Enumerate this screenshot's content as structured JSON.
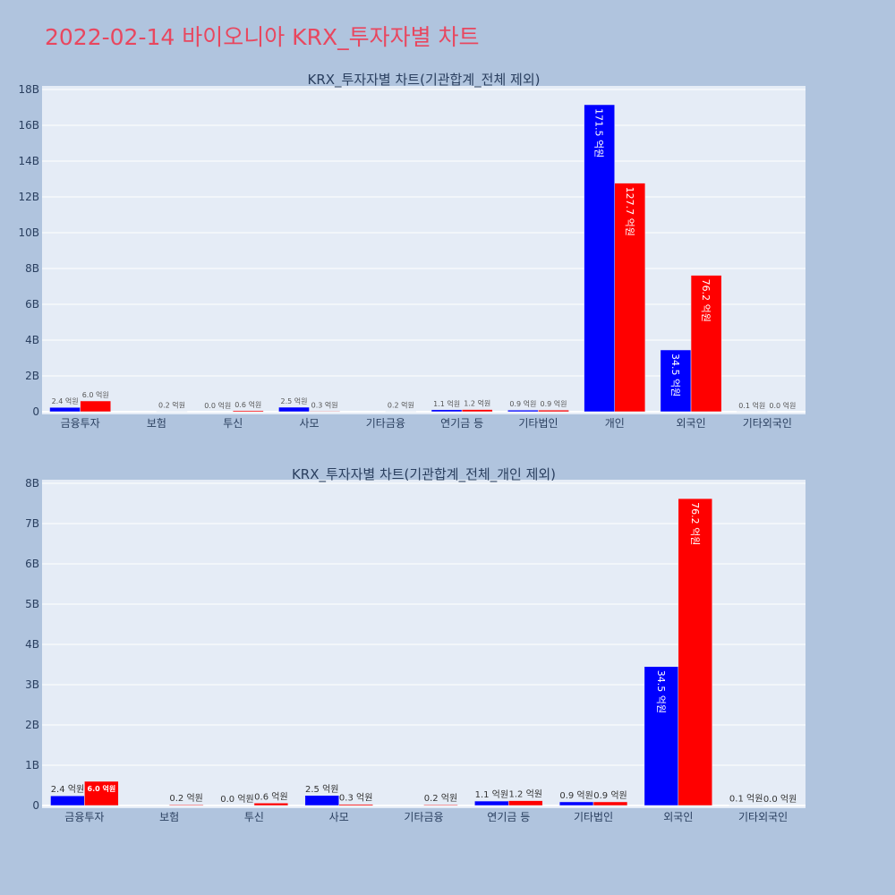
{
  "page": {
    "title": "2022-02-14 바이오니아 KRX_투자자별 차트",
    "background": "#b0c4de",
    "plot_background": "#e5ecf6",
    "colors": {
      "buy": "#0000ff",
      "sell": "#ff0000",
      "title": "#e8475f"
    }
  },
  "chart_data": [
    {
      "type": "bar",
      "title": "KRX_투자자별 차트(기관합계_전체 제외)",
      "categories": [
        "금융투자",
        "보험",
        "투신",
        "사모",
        "기타금융",
        "연기금 등",
        "기타법인",
        "개인",
        "외국인",
        "기타외국인"
      ],
      "ylim": [
        0,
        18
      ],
      "yticks": [
        0,
        2,
        4,
        6,
        8,
        10,
        12,
        14,
        16,
        18
      ],
      "ytick_labels": [
        "0",
        "2B",
        "4B",
        "6B",
        "8B",
        "10B",
        "12B",
        "14B",
        "16B",
        "18B"
      ],
      "grid": true,
      "series": [
        {
          "color": "#0000ff",
          "values": [
            0.24,
            0,
            0.0,
            0.25,
            0,
            0.11,
            0.09,
            17.15,
            3.45,
            0.01
          ],
          "labels": [
            "2.4 억원",
            "",
            "0.0 억원",
            "2.5 억원",
            "",
            "1.1 억원",
            "0.9 억원",
            "171.5 억원",
            "34.5 억원",
            "0.1 억원"
          ]
        },
        {
          "color": "#ff0000",
          "values": [
            0.6,
            0.02,
            0.06,
            0.03,
            0.02,
            0.12,
            0.09,
            12.77,
            7.62,
            0.0
          ],
          "labels": [
            "6.0 억원",
            "0.2 억원",
            "0.6 억원",
            "0.3 억원",
            "0.2 억원",
            "1.2 억원",
            "0.9 억원",
            "127.7 억원",
            "76.2 억원",
            "0.0 억원"
          ]
        }
      ]
    },
    {
      "type": "bar",
      "title": "KRX_투자자별 차트(기관합계_전체_개인 제외)",
      "categories": [
        "금융투자",
        "보험",
        "투신",
        "사모",
        "기타금융",
        "연기금 등",
        "기타법인",
        "외국인",
        "기타외국인"
      ],
      "ylim": [
        0,
        8
      ],
      "yticks": [
        0,
        1,
        2,
        3,
        4,
        5,
        6,
        7,
        8
      ],
      "ytick_labels": [
        "0",
        "1B",
        "2B",
        "3B",
        "4B",
        "5B",
        "6B",
        "7B",
        "8B"
      ],
      "grid": true,
      "series": [
        {
          "color": "#0000ff",
          "values": [
            0.24,
            0,
            0.0,
            0.25,
            0,
            0.11,
            0.09,
            3.45,
            0.01
          ],
          "labels": [
            "2.4 억원",
            "",
            "0.0 억원",
            "2.5 억원",
            "",
            "1.1 억원",
            "0.9 억원",
            "34.5 억원",
            "0.1 억원"
          ]
        },
        {
          "color": "#ff0000",
          "values": [
            0.6,
            0.02,
            0.06,
            0.03,
            0.02,
            0.12,
            0.09,
            7.62,
            0.0
          ],
          "labels": [
            "6.0 억원",
            "0.2 억원",
            "0.6 억원",
            "0.3 억원",
            "0.2 억원",
            "1.2 억원",
            "0.9 억원",
            "76.2 억원",
            "0.0 억원"
          ]
        }
      ]
    }
  ]
}
